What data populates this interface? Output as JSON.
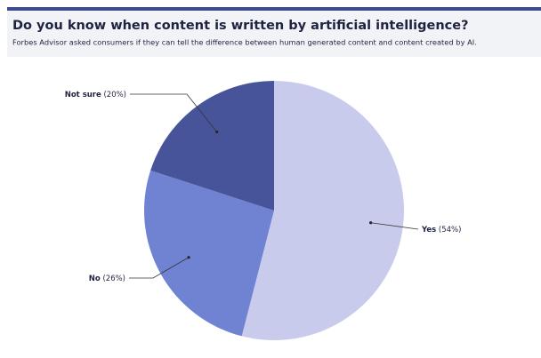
{
  "chart_data": {
    "type": "pie",
    "title": "Do you know when content is written by artificial intelligence?",
    "subtitle": "Forbes Advisor asked consumers if they can tell the difference between human generated content and content created by AI.",
    "categories": [
      "Yes",
      "No",
      "Not sure"
    ],
    "values": [
      54,
      26,
      20
    ],
    "value_labels": [
      "(54%)",
      "(26%)",
      "(20%)"
    ],
    "colors": [
      "#c8cbec",
      "#7083d2",
      "#48549a"
    ]
  }
}
